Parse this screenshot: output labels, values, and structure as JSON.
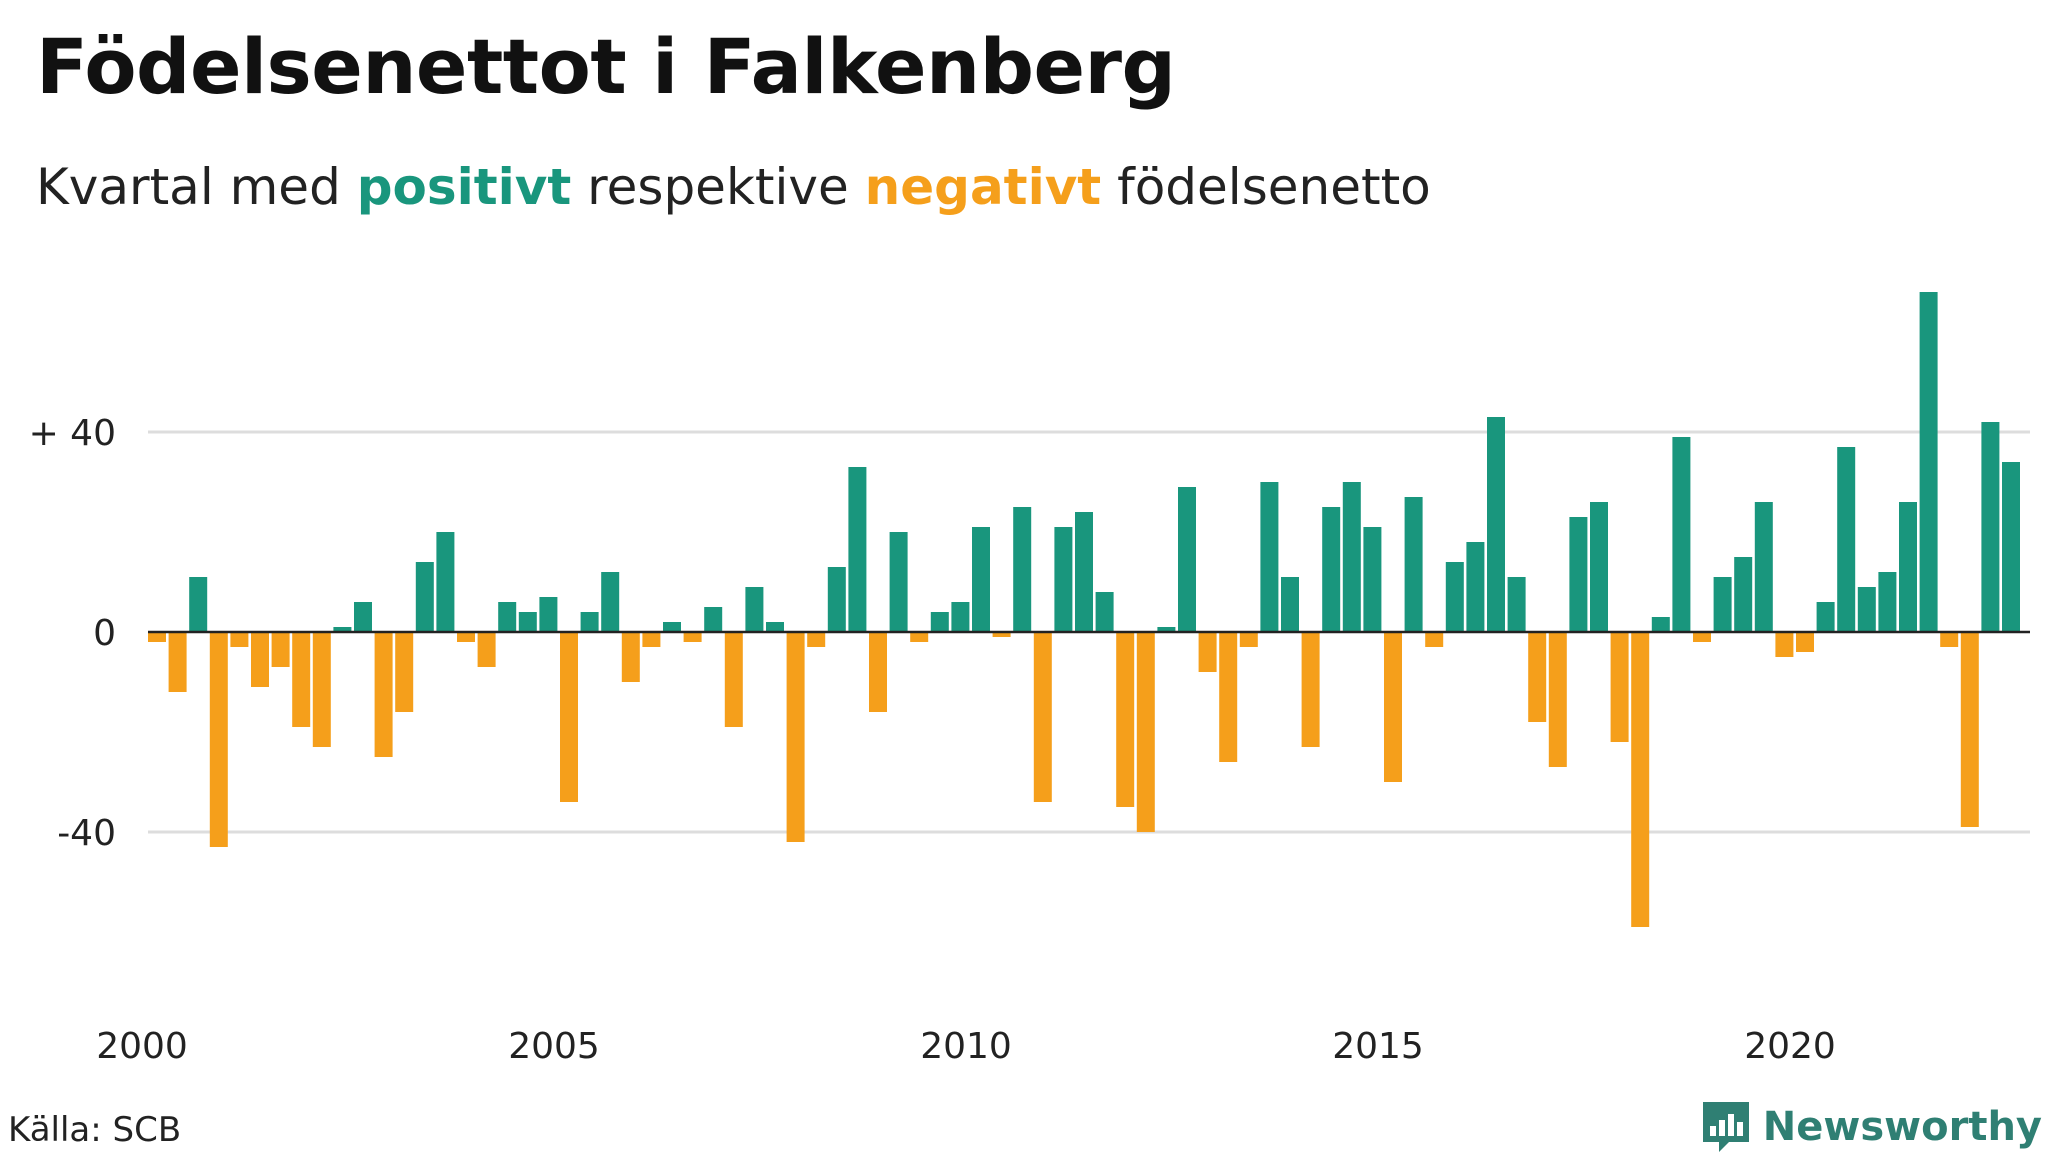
{
  "header": {
    "title": "Födelsenettot i Falkenberg",
    "subtitle_pre": "Kvartal med ",
    "subtitle_pos": "positivt",
    "subtitle_mid": " respektive ",
    "subtitle_neg": "negativt",
    "subtitle_post": " födelsenetto"
  },
  "footer": {
    "source": "Källa: SCB",
    "brand": "Newsworthy"
  },
  "colors": {
    "positive": "#19967d",
    "negative": "#f59f1b",
    "grid": "#dddddd",
    "axis": "#222222",
    "brand": "#2f7f73"
  },
  "chart_data": {
    "type": "bar",
    "start_year": 2000,
    "quarters_per_year": 4,
    "ylim": [
      -65,
      70
    ],
    "yticks": [
      {
        "value": 40,
        "label": "+ 40"
      },
      {
        "value": 0,
        "label": "0"
      },
      {
        "value": -40,
        "label": "-40"
      }
    ],
    "xticks": [
      {
        "value": 2000,
        "label": "2000"
      },
      {
        "value": 2005,
        "label": "2005"
      },
      {
        "value": 2010,
        "label": "2010"
      },
      {
        "value": 2015,
        "label": "2015"
      },
      {
        "value": 2020,
        "label": "2020"
      }
    ],
    "values": [
      -2,
      -12,
      11,
      -43,
      -3,
      -11,
      -7,
      -19,
      -23,
      1,
      6,
      -25,
      -16,
      14,
      20,
      -2,
      -7,
      6,
      4,
      7,
      -34,
      4,
      12,
      -10,
      -3,
      2,
      -2,
      5,
      -19,
      9,
      2,
      -42,
      -3,
      13,
      33,
      -16,
      20,
      -2,
      4,
      6,
      21,
      -1,
      25,
      -34,
      21,
      24,
      8,
      -35,
      -40,
      1,
      29,
      -8,
      -26,
      -3,
      30,
      11,
      -23,
      25,
      30,
      21,
      -30,
      27,
      -3,
      14,
      18,
      43,
      11,
      -18,
      -27,
      23,
      26,
      -22,
      -59,
      3,
      39,
      -2,
      11,
      15,
      26,
      -5,
      -4,
      6,
      37,
      9,
      12,
      26,
      68,
      -3,
      -39,
      42,
      34
    ]
  }
}
